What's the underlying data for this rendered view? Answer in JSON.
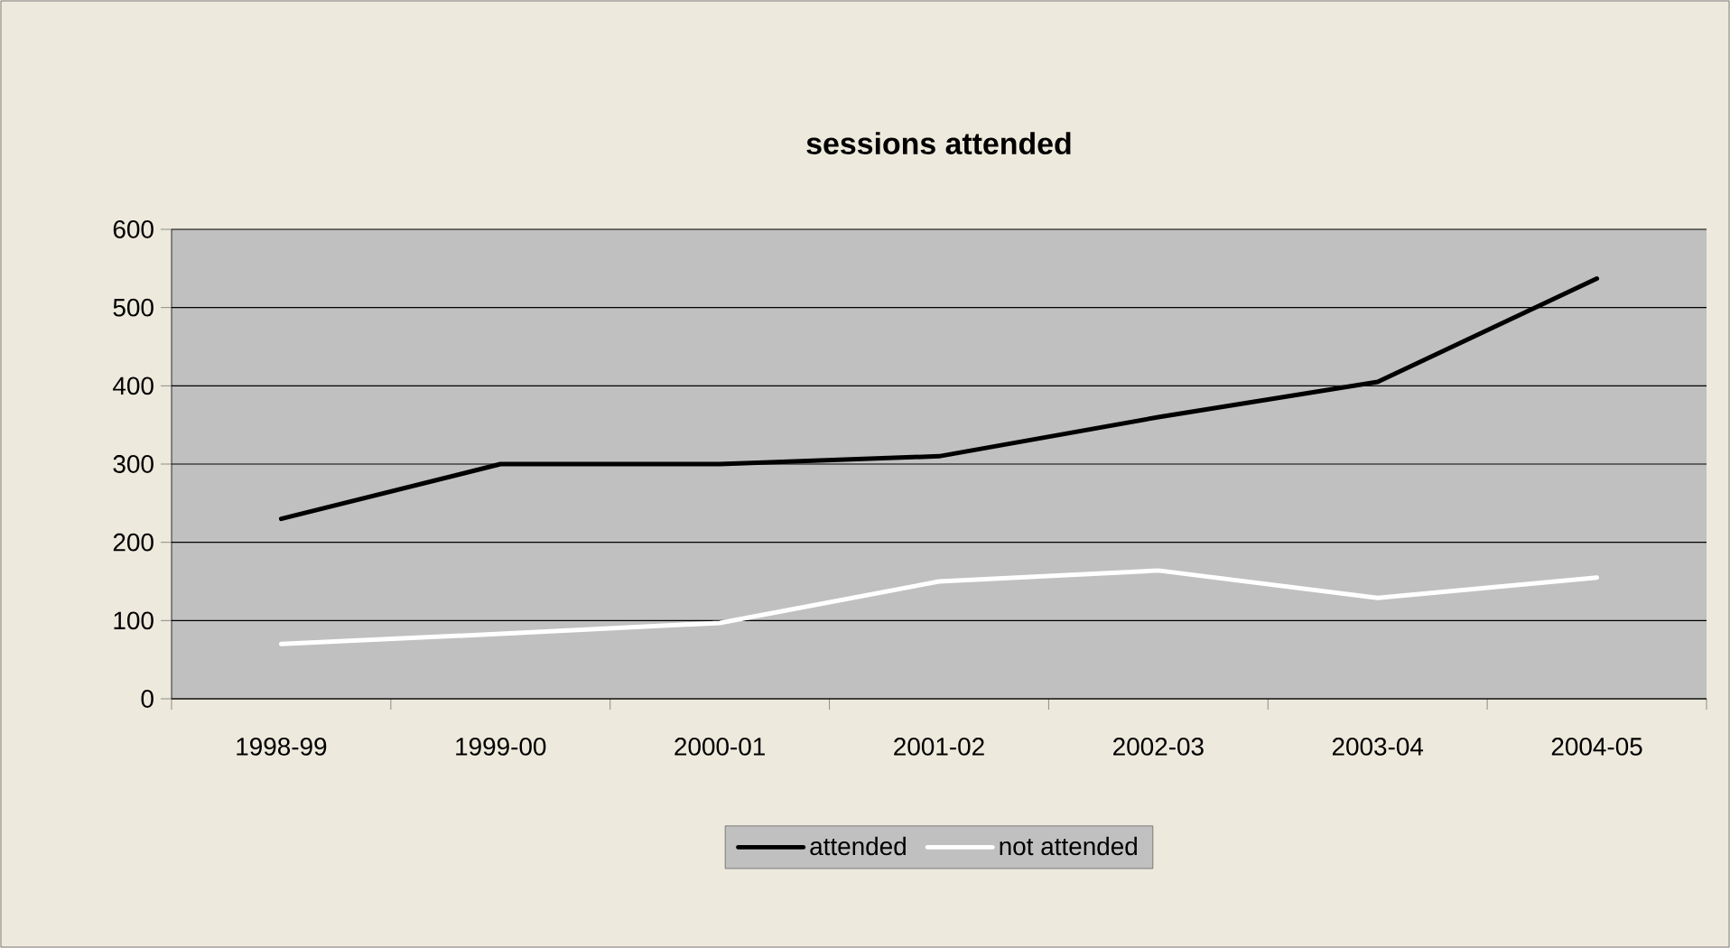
{
  "chart_data": {
    "type": "line",
    "title": "sessions attended",
    "categories": [
      "1998-99",
      "1999-00",
      "2000-01",
      "2001-02",
      "2002-03",
      "2003-04",
      "2004-05"
    ],
    "series": [
      {
        "name": "attended",
        "color": "#000000",
        "values": [
          230,
          300,
          300,
          310,
          360,
          405,
          537
        ]
      },
      {
        "name": "not attended",
        "color": "#ffffff",
        "values": [
          70,
          83,
          97,
          150,
          164,
          129,
          155
        ]
      }
    ],
    "ylim": [
      0,
      600
    ],
    "yticks": [
      0,
      100,
      200,
      300,
      400,
      500,
      600
    ],
    "grid": "y",
    "legend": "bottom",
    "line_style": "solid"
  }
}
